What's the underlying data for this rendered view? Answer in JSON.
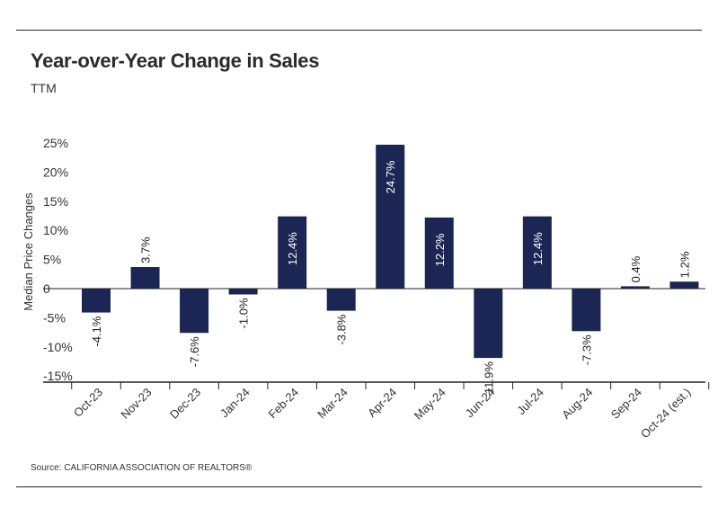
{
  "header": {
    "title": "Year-over-Year Change in Sales",
    "subtitle": "TTM"
  },
  "footer": {
    "source": "Source: CALIFORNIA ASSOCIATION OF REALTORS®"
  },
  "colors": {
    "bar": "#1c2654",
    "axis": "#222222",
    "text": "#333333"
  },
  "chart_data": {
    "type": "bar",
    "title": "Year-over-Year Change in Sales",
    "subtitle": "TTM",
    "xlabel": "",
    "ylabel": "Median Price Changes",
    "ylim": [
      -16,
      25
    ],
    "yticks": [
      25,
      20,
      15,
      10,
      5,
      0,
      -5,
      -10,
      -15
    ],
    "ytick_labels": [
      "25%",
      "20%",
      "15%",
      "10%",
      "5%",
      "0",
      "-5%",
      "-10%",
      "-15%"
    ],
    "grid": false,
    "legend": "none",
    "categories": [
      "Oct-23",
      "Nov-23",
      "Dec-23",
      "Jan-24",
      "Feb-24",
      "Mar-24",
      "Apr-24",
      "May-24",
      "Jun-24",
      "Jul-24",
      "Aug-24",
      "Sep-24",
      "Oct-24 (est.)"
    ],
    "values": [
      -4.1,
      3.7,
      -7.6,
      -1.0,
      12.4,
      -3.8,
      24.7,
      12.2,
      -11.9,
      12.4,
      -7.3,
      0.4,
      1.2
    ],
    "value_labels": [
      "-4.1%",
      "3.7%",
      "-7.6%",
      "-1.0%",
      "12.4%",
      "-3.8%",
      "24.7%",
      "12.2%",
      "-11.9%",
      "12.4%",
      "-7.3%",
      "0.4%",
      "1.2%"
    ]
  }
}
